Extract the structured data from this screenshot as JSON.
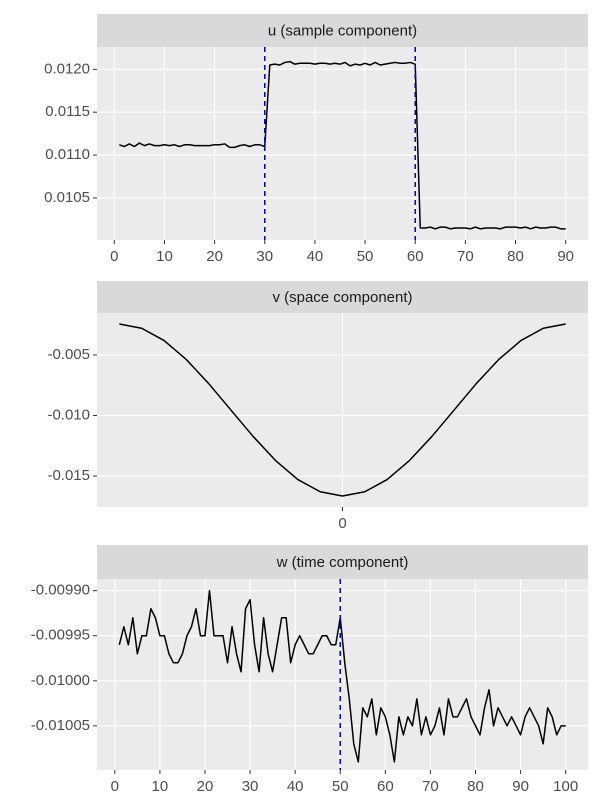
{
  "chart_data": [
    {
      "type": "line",
      "title": "u (sample component)",
      "x": [
        1,
        2,
        3,
        4,
        5,
        6,
        7,
        8,
        9,
        10,
        11,
        12,
        13,
        14,
        15,
        16,
        17,
        18,
        19,
        20,
        21,
        22,
        23,
        24,
        25,
        26,
        27,
        28,
        29,
        30,
        31,
        32,
        33,
        34,
        35,
        36,
        37,
        38,
        39,
        40,
        41,
        42,
        43,
        44,
        45,
        46,
        47,
        48,
        49,
        50,
        51,
        52,
        53,
        54,
        55,
        56,
        57,
        58,
        59,
        60,
        61,
        62,
        63,
        64,
        65,
        66,
        67,
        68,
        69,
        70,
        71,
        72,
        73,
        74,
        75,
        76,
        77,
        78,
        79,
        80,
        81,
        82,
        83,
        84,
        85,
        86,
        87,
        88,
        89,
        90
      ],
      "values": [
        0.01112,
        0.0111,
        0.01113,
        0.0111,
        0.01114,
        0.01111,
        0.01113,
        0.01111,
        0.01111,
        0.01112,
        0.01111,
        0.01112,
        0.0111,
        0.01112,
        0.01112,
        0.01111,
        0.01111,
        0.01111,
        0.01111,
        0.01112,
        0.01112,
        0.01113,
        0.01109,
        0.01109,
        0.01111,
        0.01112,
        0.0111,
        0.01112,
        0.01112,
        0.0111,
        0.01205,
        0.01206,
        0.01205,
        0.01208,
        0.01209,
        0.01206,
        0.01207,
        0.01207,
        0.01207,
        0.01206,
        0.01207,
        0.01207,
        0.01206,
        0.01207,
        0.01206,
        0.01208,
        0.01204,
        0.01206,
        0.01205,
        0.01207,
        0.01205,
        0.01208,
        0.01205,
        0.01206,
        0.01207,
        0.01208,
        0.01207,
        0.01207,
        0.01208,
        0.01206,
        0.01015,
        0.01015,
        0.01016,
        0.01014,
        0.01016,
        0.01016,
        0.01014,
        0.01015,
        0.01015,
        0.01015,
        0.01014,
        0.01016,
        0.01014,
        0.01015,
        0.01015,
        0.01015,
        0.01014,
        0.01016,
        0.01016,
        0.01016,
        0.01015,
        0.01016,
        0.01014,
        0.01016,
        0.01015,
        0.01015,
        0.01016,
        0.01016,
        0.01014,
        0.01014
      ],
      "color": "#000000",
      "xlim": [
        -3.45,
        94.45
      ],
      "xticks": [
        0,
        10,
        20,
        30,
        40,
        50,
        60,
        70,
        80,
        90
      ],
      "ylim": [
        0.01001,
        0.01226
      ],
      "yticks": [
        {
          "value": 0.0105,
          "label": "0.0105"
        },
        {
          "value": 0.011,
          "label": "0.0110"
        },
        0.0115,
        {
          "value": 0.012,
          "label": "0.0120"
        }
      ],
      "vlines": [
        30,
        60
      ],
      "vline_color": "#0000cc",
      "grid": true
    },
    {
      "type": "line",
      "title": "v (space component)",
      "x": [
        -1,
        -0.9,
        -0.8,
        -0.7,
        -0.6,
        -0.5,
        -0.4,
        -0.3,
        -0.2,
        -0.1,
        0,
        0.1,
        0.2,
        0.3,
        0.4,
        0.5,
        0.6,
        0.7,
        0.8,
        0.9,
        1
      ],
      "values": [
        -0.00244,
        -0.00279,
        -0.0038,
        -0.00537,
        -0.00735,
        -0.00955,
        -0.01174,
        -0.01372,
        -0.01529,
        -0.0163,
        -0.01665,
        -0.0163,
        -0.01529,
        -0.01372,
        -0.01174,
        -0.00955,
        -0.00735,
        -0.00537,
        -0.0038,
        -0.00279,
        -0.00244
      ],
      "color": "#000000",
      "xlim": [
        -1.1,
        1.1
      ],
      "xticks": [
        0
      ],
      "ylim": [
        -0.01756,
        -0.00153
      ],
      "yticks": [
        -0.015,
        {
          "value": -0.01,
          "label": "-0.010"
        },
        -0.005
      ],
      "grid": true
    },
    {
      "type": "line",
      "title": "w (time component)",
      "x": [
        1,
        2,
        3,
        4,
        5,
        6,
        7,
        8,
        9,
        10,
        11,
        12,
        13,
        14,
        15,
        16,
        17,
        18,
        19,
        20,
        21,
        22,
        23,
        24,
        25,
        26,
        27,
        28,
        29,
        30,
        31,
        32,
        33,
        34,
        35,
        36,
        37,
        38,
        39,
        40,
        41,
        42,
        43,
        44,
        45,
        46,
        47,
        48,
        49,
        50,
        51,
        52,
        53,
        54,
        55,
        56,
        57,
        58,
        59,
        60,
        61,
        62,
        63,
        64,
        65,
        66,
        67,
        68,
        69,
        70,
        71,
        72,
        73,
        74,
        75,
        76,
        77,
        78,
        79,
        80,
        81,
        82,
        83,
        84,
        85,
        86,
        87,
        88,
        89,
        90,
        91,
        92,
        93,
        94,
        95,
        96,
        97,
        98,
        99,
        100
      ],
      "values": [
        -0.00996,
        -0.00994,
        -0.00996,
        -0.00993,
        -0.00997,
        -0.00995,
        -0.00995,
        -0.00992,
        -0.00993,
        -0.00995,
        -0.00995,
        -0.00997,
        -0.00998,
        -0.00998,
        -0.00997,
        -0.00995,
        -0.00994,
        -0.00992,
        -0.00995,
        -0.00995,
        -0.0099,
        -0.00995,
        -0.00995,
        -0.00995,
        -0.00998,
        -0.00994,
        -0.00997,
        -0.00999,
        -0.00992,
        -0.00991,
        -0.00996,
        -0.00999,
        -0.00993,
        -0.00997,
        -0.00999,
        -0.00996,
        -0.00993,
        -0.00993,
        -0.00998,
        -0.00996,
        -0.00995,
        -0.00996,
        -0.00997,
        -0.00997,
        -0.00996,
        -0.00995,
        -0.00995,
        -0.00996,
        -0.00996,
        -0.00993,
        -0.00998,
        -0.01002,
        -0.01007,
        -0.01009,
        -0.01003,
        -0.01004,
        -0.01002,
        -0.01006,
        -0.01003,
        -0.01004,
        -0.01006,
        -0.01009,
        -0.01004,
        -0.01006,
        -0.01004,
        -0.01005,
        -0.01002,
        -0.01006,
        -0.01004,
        -0.01006,
        -0.01005,
        -0.01003,
        -0.01006,
        -0.01002,
        -0.01004,
        -0.01004,
        -0.01003,
        -0.01002,
        -0.01004,
        -0.01005,
        -0.01006,
        -0.01003,
        -0.01001,
        -0.01005,
        -0.01003,
        -0.01004,
        -0.01005,
        -0.01004,
        -0.01005,
        -0.01006,
        -0.01004,
        -0.01003,
        -0.01004,
        -0.01005,
        -0.01007,
        -0.01003,
        -0.01004,
        -0.01006,
        -0.01005,
        -0.01005
      ],
      "color": "#000000",
      "xlim": [
        -3.95,
        104.95
      ],
      "xticks": [
        0,
        10,
        20,
        30,
        40,
        50,
        60,
        70,
        80,
        90,
        100
      ],
      "ylim": [
        -0.010099,
        -0.009887
      ],
      "yticks": [
        -0.01005,
        {
          "value": -0.01,
          "label": "-0.01000"
        },
        -0.00995,
        {
          "value": -0.0099,
          "label": "-0.00990"
        }
      ],
      "vlines": [
        50
      ],
      "vline_color": "#0000cc",
      "grid": true
    }
  ]
}
